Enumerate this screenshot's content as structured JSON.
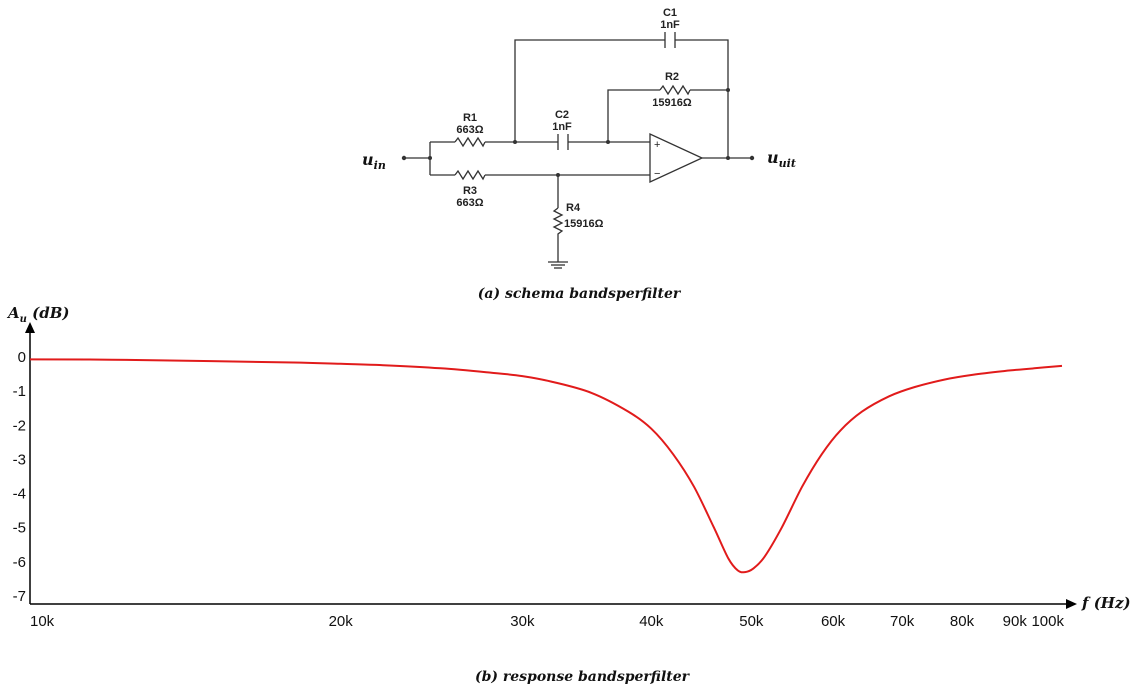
{
  "schematic": {
    "components": {
      "c1": {
        "name": "C1",
        "value": "1nF"
      },
      "r2": {
        "name": "R2",
        "value": "15916Ω"
      },
      "c2": {
        "name": "C2",
        "value": "1nF"
      },
      "r1": {
        "name": "R1",
        "value": "663Ω"
      },
      "r3": {
        "name": "R3",
        "value": "663Ω"
      },
      "r4": {
        "name": "R4",
        "value": "15916Ω"
      }
    },
    "input_label": {
      "main": "u",
      "sub": "in"
    },
    "output_label": {
      "main": "u",
      "sub": "uit"
    },
    "opamp": {
      "plus": "+",
      "minus": "−"
    },
    "caption": {
      "tag": "(a)",
      "text": "schema bandsperfilter"
    }
  },
  "chart_data": {
    "type": "line",
    "ylabel": {
      "main": "A",
      "sub": "u",
      "unit": "(dB)"
    },
    "xlabel": {
      "main": "f",
      "unit": "(Hz)"
    },
    "x_scale": "log",
    "xlim": [
      10000,
      100000
    ],
    "ylim": [
      -7,
      0
    ],
    "y_ticks": [
      "0",
      "-1",
      "-2",
      "-3",
      "-4",
      "-5",
      "-6",
      "-7"
    ],
    "x_ticks": [
      {
        "value": 10000,
        "label": "10k"
      },
      {
        "value": 20000,
        "label": "20k"
      },
      {
        "value": 30000,
        "label": "30k"
      },
      {
        "value": 40000,
        "label": "40k"
      },
      {
        "value": 50000,
        "label": "50k"
      },
      {
        "value": 60000,
        "label": "60k"
      },
      {
        "value": 70000,
        "label": "70k"
      },
      {
        "value": 80000,
        "label": "80k"
      },
      {
        "value": 90000,
        "label": "90k"
      },
      {
        "value": 100000,
        "label": "100k"
      }
    ],
    "series": [
      {
        "color": "#e11b1b",
        "points": [
          [
            10000,
            -0.07
          ],
          [
            12000,
            -0.08
          ],
          [
            15000,
            -0.12
          ],
          [
            18000,
            -0.16
          ],
          [
            20000,
            -0.2
          ],
          [
            22000,
            -0.24
          ],
          [
            25000,
            -0.33
          ],
          [
            28000,
            -0.46
          ],
          [
            30000,
            -0.56
          ],
          [
            32000,
            -0.72
          ],
          [
            35000,
            -1.05
          ],
          [
            38000,
            -1.6
          ],
          [
            40000,
            -2.1
          ],
          [
            42000,
            -2.85
          ],
          [
            44000,
            -3.8
          ],
          [
            46000,
            -5.0
          ],
          [
            47500,
            -5.9
          ],
          [
            48500,
            -6.25
          ],
          [
            49300,
            -6.3
          ],
          [
            50200,
            -6.2
          ],
          [
            51500,
            -5.85
          ],
          [
            53500,
            -5.0
          ],
          [
            56000,
            -3.8
          ],
          [
            58500,
            -2.85
          ],
          [
            61000,
            -2.15
          ],
          [
            64000,
            -1.6
          ],
          [
            68000,
            -1.15
          ],
          [
            72000,
            -0.88
          ],
          [
            77000,
            -0.66
          ],
          [
            82000,
            -0.52
          ],
          [
            88000,
            -0.41
          ],
          [
            94000,
            -0.33
          ],
          [
            100000,
            -0.26
          ]
        ]
      }
    ],
    "caption": {
      "tag": "(b)",
      "text": "response bandsperfilter"
    }
  }
}
